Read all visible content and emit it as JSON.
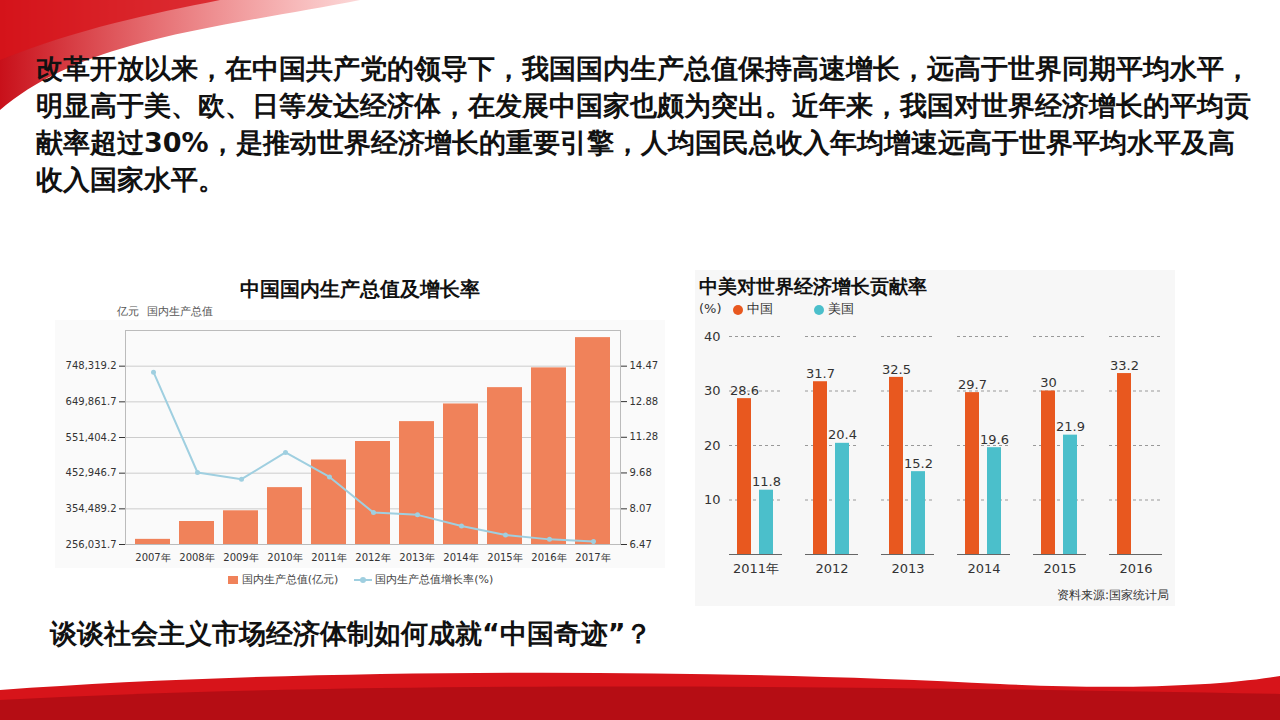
{
  "slide": {
    "text": "改革开放以来，在中国共产党的领导下，我国国内生产总值保持高速增长，远高于世界同期平均水平，明显高于美、欧、日等发达经济体，在发展中国家也颇为突出。近年来，我国对世界经济增长的平均贡献率超过30%，是推动世界经济增长的重要引擎，人均国民总收入年均增速远高于世界平均水平及高收入国家水平。",
    "question": "谈谈社会主义市场经济体制如何成就“中国奇迹”？"
  },
  "chart_data": [
    {
      "type": "bar",
      "title": "中国国内生产总值及增长率",
      "subtitle": "国内生产总值",
      "ylabel": "亿元",
      "categories": [
        "2007年",
        "2008年",
        "2009年",
        "2010年",
        "2011年",
        "2012年",
        "2013年",
        "2014年",
        "2015年",
        "2016年",
        "2017年"
      ],
      "series": [
        {
          "name": "国内生产总值(亿元)",
          "type": "bar",
          "color": "#f0825a",
          "values": [
            270232,
            319516,
            349081,
            413030,
            489301,
            540367,
            595244,
            643974,
            689052,
            743586,
            827122
          ]
        },
        {
          "name": "国内生产总值增长率(%)",
          "type": "line",
          "axis": "y2",
          "color": "#9fcfe0",
          "marker": "circle",
          "values": [
            14.2,
            9.7,
            9.4,
            10.6,
            9.5,
            7.9,
            7.8,
            7.3,
            6.9,
            6.7,
            6.6
          ]
        }
      ],
      "ylim": [
        256031.7,
        846776.7
      ],
      "yticks": [
        {
          "value": 256031.7,
          "label": "256,031.7"
        },
        {
          "value": 354489.2,
          "label": "354,489.2"
        },
        {
          "value": 452946.7,
          "label": "452,946.7"
        },
        {
          "value": 551404.2,
          "label": "551,404.2"
        },
        {
          "value": 649861.7,
          "label": "649,861.7"
        },
        {
          "value": 748319.2,
          "label": "748,319.2"
        }
      ],
      "y2lim": [
        6.47,
        16.07
      ],
      "y2ticks": [
        6.47,
        8.07,
        9.68,
        11.28,
        12.88,
        14.47
      ],
      "legend": "bottom"
    },
    {
      "type": "bar",
      "title": "中美对世界经济增长贡献率",
      "ylabel": "(%)",
      "source": "资料来源:国家统计局",
      "categories": [
        "2011年",
        "2012",
        "2013",
        "2014",
        "2015",
        "2016"
      ],
      "series": [
        {
          "name": "中国",
          "color": "#e8581f",
          "values": [
            28.6,
            31.7,
            32.5,
            29.7,
            30,
            33.2
          ]
        },
        {
          "name": "美国",
          "color": "#4bbfcb",
          "values": [
            11.8,
            20.4,
            15.2,
            19.6,
            21.9,
            null
          ]
        }
      ],
      "ylim": [
        0,
        40
      ],
      "yticks": [
        10,
        20,
        30,
        40
      ],
      "grid": true,
      "data_labels": true,
      "legend": "top"
    }
  ]
}
